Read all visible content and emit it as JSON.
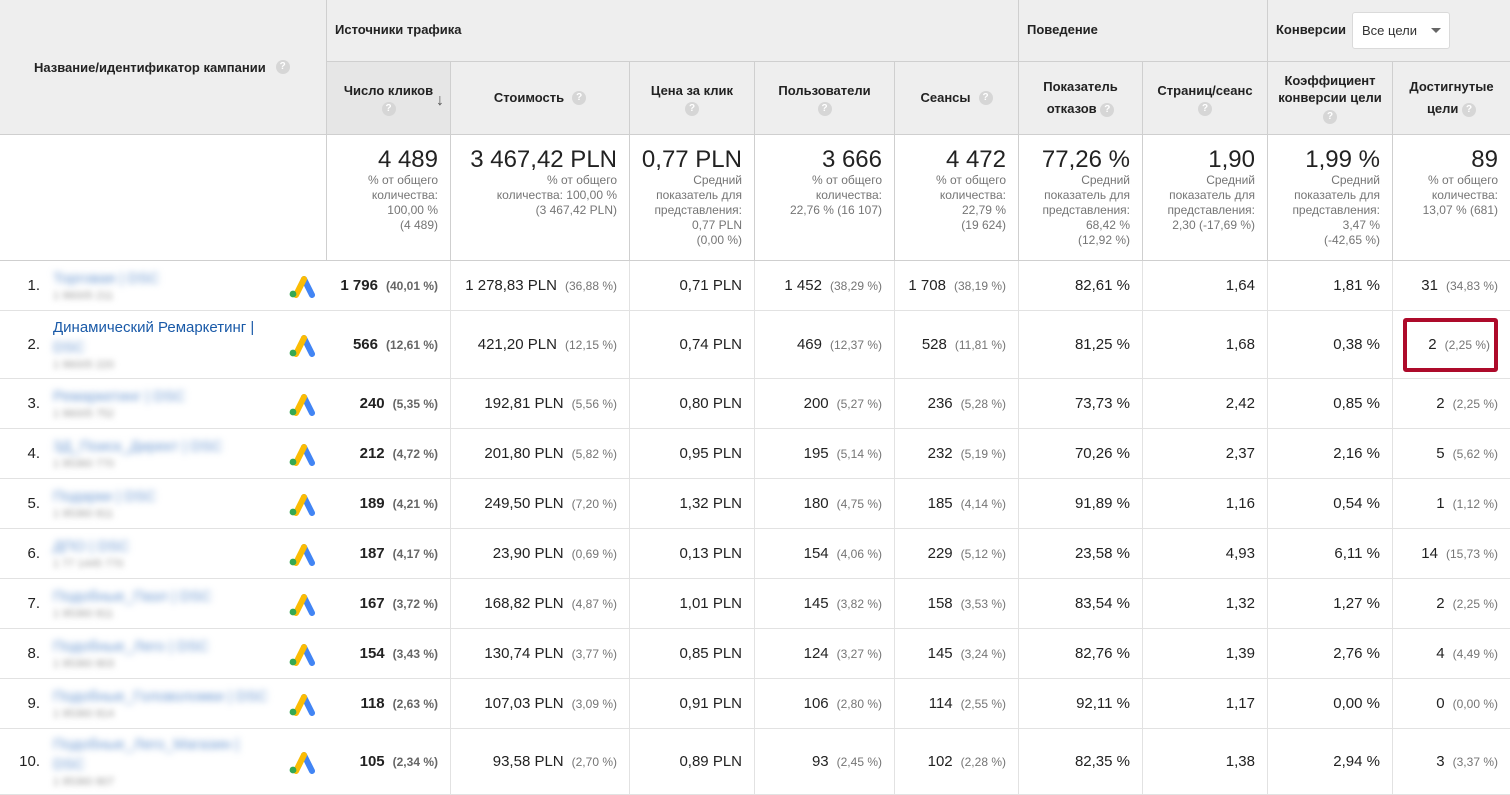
{
  "header": {
    "campaign_label": "Название/идентификатор кампании",
    "group_traffic": "Источники трафика",
    "group_behavior": "Поведение",
    "group_conversions": "Конверсии",
    "goal_select": "Все цели",
    "columns": [
      {
        "label1": "Число кликов",
        "label2": ""
      },
      {
        "label1": "Стоимость",
        "label2": ""
      },
      {
        "label1": "Цена за клик",
        "label2": ""
      },
      {
        "label1": "Пользователи",
        "label2": ""
      },
      {
        "label1": "Сеансы",
        "label2": ""
      },
      {
        "label1": "Показатель",
        "label2": "отказов"
      },
      {
        "label1": "Страниц/сеанс",
        "label2": ""
      },
      {
        "label1": "Коэффициент",
        "label2": "конверсии цели"
      },
      {
        "label1": "Достигнутые",
        "label2": "цели"
      }
    ]
  },
  "summary": [
    {
      "big": "4 489",
      "small": "% от общего\nколичества:\n100,00 %\n(4 489)"
    },
    {
      "big": "3 467,42 PLN",
      "small": "% от общего\nколичества: 100,00 %\n(3 467,42 PLN)"
    },
    {
      "big": "0,77 PLN",
      "small": "Средний\nпоказатель для\nпредставления:\n0,77 PLN\n(0,00 %)"
    },
    {
      "big": "3 666",
      "small": "% от общего\nколичества:\n22,76 % (16 107)"
    },
    {
      "big": "4 472",
      "small": "% от общего\nколичества:\n22,79 %\n(19 624)"
    },
    {
      "big": "77,26 %",
      "small": "Средний\nпоказатель для\nпредставления:\n68,42 %\n(12,92 %)"
    },
    {
      "big": "1,90",
      "small": "Средний\nпоказатель для\nпредставления:\n2,30 (-17,69 %)"
    },
    {
      "big": "1,99 %",
      "small": "Средний\nпоказатель для\nпредставления:\n3,47 %\n(-42,65 %)"
    },
    {
      "big": "89",
      "small": "% от общего\nколичества:\n13,07 % (681)"
    }
  ],
  "rows": [
    {
      "idx": "1.",
      "name": "Торговая | DSC",
      "sub": "1 96005 211",
      "clicks": "1 796",
      "clicks_pct": "(40,01 %)",
      "cost": "1 278,83 PLN",
      "cost_pct": "(36,88 %)",
      "cpc": "0,71 PLN",
      "users": "1 452",
      "users_pct": "(38,29 %)",
      "sessions": "1 708",
      "sessions_pct": "(38,19 %)",
      "bounce": "82,61 %",
      "pages": "1,64",
      "conv": "1,81 %",
      "goals": "31",
      "goals_pct": "(34,83 %)"
    },
    {
      "idx": "2.",
      "name": "Динамический Ремаркетинг |",
      "name2": "DSC",
      "sub": "1 96005 220",
      "clicks": "566",
      "clicks_pct": "(12,61 %)",
      "cost": "421,20 PLN",
      "cost_pct": "(12,15 %)",
      "cpc": "0,74 PLN",
      "users": "469",
      "users_pct": "(12,37 %)",
      "sessions": "528",
      "sessions_pct": "(11,81 %)",
      "bounce": "81,25 %",
      "pages": "1,68",
      "conv": "0,38 %",
      "goals": "2",
      "goals_pct": "(2,25 %)"
    },
    {
      "idx": "3.",
      "name": "Ремаркетинг | DSC",
      "sub": "1 96005 752",
      "clicks": "240",
      "clicks_pct": "(5,35 %)",
      "cost": "192,81 PLN",
      "cost_pct": "(5,56 %)",
      "cpc": "0,80 PLN",
      "users": "200",
      "users_pct": "(5,27 %)",
      "sessions": "236",
      "sessions_pct": "(5,28 %)",
      "bounce": "73,73 %",
      "pages": "2,42",
      "conv": "0,85 %",
      "goals": "2",
      "goals_pct": "(2,25 %)"
    },
    {
      "idx": "4.",
      "name": "3Д_Поиск_Директ | DSC",
      "sub": "1 95360 770",
      "clicks": "212",
      "clicks_pct": "(4,72 %)",
      "cost": "201,80 PLN",
      "cost_pct": "(5,82 %)",
      "cpc": "0,95 PLN",
      "users": "195",
      "users_pct": "(5,14 %)",
      "sessions": "232",
      "sessions_pct": "(5,19 %)",
      "bounce": "70,26 %",
      "pages": "2,37",
      "conv": "2,16 %",
      "goals": "5",
      "goals_pct": "(5,62 %)"
    },
    {
      "idx": "5.",
      "name": "Подарки | DSC",
      "sub": "1 95360 811",
      "clicks": "189",
      "clicks_pct": "(4,21 %)",
      "cost": "249,50 PLN",
      "cost_pct": "(7,20 %)",
      "cpc": "1,32 PLN",
      "users": "180",
      "users_pct": "(4,75 %)",
      "sessions": "185",
      "sessions_pct": "(4,14 %)",
      "bounce": "91,89 %",
      "pages": "1,16",
      "conv": "0,54 %",
      "goals": "1",
      "goals_pct": "(1,12 %)"
    },
    {
      "idx": "6.",
      "name": "ДПО | DSC",
      "sub": "1 77 1445 770",
      "clicks": "187",
      "clicks_pct": "(4,17 %)",
      "cost": "23,90 PLN",
      "cost_pct": "(0,69 %)",
      "cpc": "0,13 PLN",
      "users": "154",
      "users_pct": "(4,06 %)",
      "sessions": "229",
      "sessions_pct": "(5,12 %)",
      "bounce": "23,58 %",
      "pages": "4,93",
      "conv": "6,11 %",
      "goals": "14",
      "goals_pct": "(15,73 %)"
    },
    {
      "idx": "7.",
      "name": "Подобные_Пазл | DSC",
      "sub": "1 95360 811",
      "clicks": "167",
      "clicks_pct": "(3,72 %)",
      "cost": "168,82 PLN",
      "cost_pct": "(4,87 %)",
      "cpc": "1,01 PLN",
      "users": "145",
      "users_pct": "(3,82 %)",
      "sessions": "158",
      "sessions_pct": "(3,53 %)",
      "bounce": "83,54 %",
      "pages": "1,32",
      "conv": "1,27 %",
      "goals": "2",
      "goals_pct": "(2,25 %)"
    },
    {
      "idx": "8.",
      "name": "Подобные_Лего | DSC",
      "sub": "1 95360 803",
      "clicks": "154",
      "clicks_pct": "(3,43 %)",
      "cost": "130,74 PLN",
      "cost_pct": "(3,77 %)",
      "cpc": "0,85 PLN",
      "users": "124",
      "users_pct": "(3,27 %)",
      "sessions": "145",
      "sessions_pct": "(3,24 %)",
      "bounce": "82,76 %",
      "pages": "1,39",
      "conv": "2,76 %",
      "goals": "4",
      "goals_pct": "(4,49 %)"
    },
    {
      "idx": "9.",
      "name": "Подобные_Головоломки | DSC",
      "sub": "1 95360 814",
      "clicks": "118",
      "clicks_pct": "(2,63 %)",
      "cost": "107,03 PLN",
      "cost_pct": "(3,09 %)",
      "cpc": "0,91 PLN",
      "users": "106",
      "users_pct": "(2,80 %)",
      "sessions": "114",
      "sessions_pct": "(2,55 %)",
      "bounce": "92,11 %",
      "pages": "1,17",
      "conv": "0,00 %",
      "goals": "0",
      "goals_pct": "(0,00 %)"
    },
    {
      "idx": "10.",
      "name": "Подобные_Лего_Магазин |",
      "name2": "DSC",
      "sub": "1 95360 807",
      "clicks": "105",
      "clicks_pct": "(2,34 %)",
      "cost": "93,58 PLN",
      "cost_pct": "(2,70 %)",
      "cpc": "0,89 PLN",
      "users": "93",
      "users_pct": "(2,45 %)",
      "sessions": "102",
      "sessions_pct": "(2,28 %)",
      "bounce": "82,35 %",
      "pages": "1,38",
      "conv": "2,94 %",
      "goals": "3",
      "goals_pct": "(3,37 %)"
    }
  ],
  "colors": {
    "header_bg": "#eeeeee",
    "link": "#1a5aa8",
    "highlight": "#ad0a2a",
    "ads_yellow": "#fbbc04",
    "ads_blue": "#4285f4",
    "ads_green": "#34a853"
  },
  "icons": {
    "help": "question-icon",
    "sort": "arrow-down-icon",
    "ads": "google-ads-icon"
  }
}
